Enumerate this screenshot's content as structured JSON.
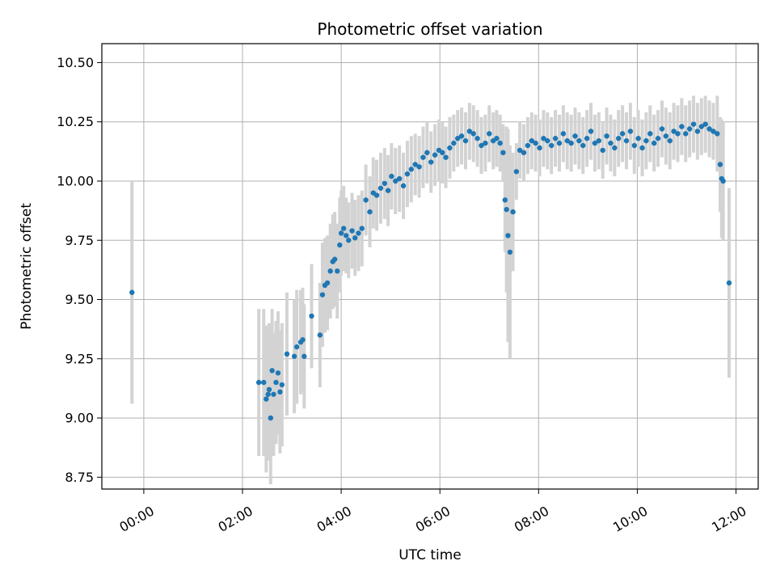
{
  "chart_data": {
    "type": "scatter",
    "title": "Photometric offset variation",
    "xlabel": "UTC time",
    "ylabel": "Photometric offset",
    "x_unit": "hours UTC",
    "xlim": [
      -0.85,
      12.45
    ],
    "ylim": [
      8.7,
      10.58
    ],
    "x_ticks": [
      {
        "value": 0,
        "label": "00:00"
      },
      {
        "value": 2,
        "label": "02:00"
      },
      {
        "value": 4,
        "label": "04:00"
      },
      {
        "value": 6,
        "label": "06:00"
      },
      {
        "value": 8,
        "label": "08:00"
      },
      {
        "value": 10,
        "label": "10:00"
      },
      {
        "value": 12,
        "label": "12:00"
      }
    ],
    "y_ticks": [
      {
        "value": 8.75,
        "label": "8.75"
      },
      {
        "value": 9.0,
        "label": "9.00"
      },
      {
        "value": 9.25,
        "label": "9.25"
      },
      {
        "value": 9.5,
        "label": "9.50"
      },
      {
        "value": 9.75,
        "label": "9.75"
      },
      {
        "value": 10.0,
        "label": "10.00"
      },
      {
        "value": 10.25,
        "label": "10.25"
      },
      {
        "value": 10.5,
        "label": "10.50"
      }
    ],
    "grid": true,
    "colors": {
      "points": "#1f77b4",
      "error_bars": "#d3d3d3",
      "grid": "#b0b0b0"
    },
    "series": [
      {
        "x": [
          -0.24,
          2.33,
          2.43,
          2.48,
          2.52,
          2.54,
          2.57,
          2.6,
          2.63,
          2.68,
          2.72,
          2.76,
          2.8,
          2.9,
          3.05,
          3.1,
          3.18,
          3.22,
          3.25,
          3.4,
          3.57,
          3.62,
          3.67,
          3.72,
          3.78,
          3.83,
          3.87,
          3.92,
          3.97,
          4.0,
          4.05,
          4.1,
          4.15,
          4.22,
          4.28,
          4.35,
          4.42,
          4.5,
          4.58,
          4.65,
          4.72,
          4.8,
          4.88,
          4.95,
          5.02,
          5.1,
          5.18,
          5.26,
          5.34,
          5.42,
          5.5,
          5.58,
          5.66,
          5.74,
          5.82,
          5.9,
          5.98,
          6.05,
          6.12,
          6.2,
          6.28,
          6.36,
          6.44,
          6.52,
          6.6,
          6.68,
          6.76,
          6.84,
          6.92,
          7.0,
          7.08,
          7.15,
          7.22,
          7.28,
          7.32,
          7.35,
          7.38,
          7.42,
          7.48,
          7.55,
          7.62,
          7.7,
          7.78,
          7.86,
          7.94,
          8.02,
          8.1,
          8.18,
          8.26,
          8.34,
          8.42,
          8.5,
          8.58,
          8.66,
          8.74,
          8.82,
          8.9,
          8.98,
          9.06,
          9.14,
          9.22,
          9.3,
          9.38,
          9.46,
          9.54,
          9.62,
          9.7,
          9.78,
          9.86,
          9.94,
          10.02,
          10.1,
          10.18,
          10.26,
          10.34,
          10.42,
          10.5,
          10.58,
          10.66,
          10.74,
          10.82,
          10.9,
          10.98,
          11.06,
          11.14,
          11.22,
          11.3,
          11.38,
          11.46,
          11.54,
          11.62,
          11.68,
          11.71,
          11.74,
          11.86
        ],
        "y": [
          9.53,
          9.15,
          9.15,
          9.08,
          9.1,
          9.12,
          9.0,
          9.2,
          9.1,
          9.15,
          9.19,
          9.11,
          9.14,
          9.27,
          9.26,
          9.3,
          9.32,
          9.33,
          9.26,
          9.43,
          9.35,
          9.52,
          9.56,
          9.57,
          9.62,
          9.66,
          9.67,
          9.62,
          9.73,
          9.78,
          9.8,
          9.77,
          9.75,
          9.79,
          9.76,
          9.78,
          9.8,
          9.92,
          9.87,
          9.95,
          9.94,
          9.97,
          9.99,
          9.96,
          10.02,
          10.0,
          10.01,
          9.98,
          10.03,
          10.05,
          10.07,
          10.06,
          10.1,
          10.12,
          10.08,
          10.11,
          10.13,
          10.12,
          10.1,
          10.14,
          10.16,
          10.18,
          10.19,
          10.17,
          10.21,
          10.2,
          10.18,
          10.15,
          10.16,
          10.2,
          10.17,
          10.18,
          10.16,
          10.12,
          9.92,
          9.88,
          9.77,
          9.7,
          9.87,
          10.04,
          10.13,
          10.12,
          10.15,
          10.17,
          10.16,
          10.14,
          10.18,
          10.17,
          10.15,
          10.18,
          10.16,
          10.2,
          10.17,
          10.16,
          10.19,
          10.17,
          10.15,
          10.18,
          10.21,
          10.16,
          10.17,
          10.13,
          10.19,
          10.16,
          10.14,
          10.18,
          10.2,
          10.17,
          10.21,
          10.15,
          10.18,
          10.14,
          10.17,
          10.2,
          10.16,
          10.18,
          10.22,
          10.19,
          10.17,
          10.21,
          10.2,
          10.23,
          10.2,
          10.22,
          10.24,
          10.21,
          10.23,
          10.24,
          10.22,
          10.21,
          10.2,
          10.07,
          10.01,
          10.0,
          9.57
        ],
        "yerr": [
          0.47,
          0.31,
          0.31,
          0.31,
          0.28,
          0.28,
          0.28,
          0.26,
          0.26,
          0.26,
          0.26,
          0.26,
          0.26,
          0.26,
          0.24,
          0.24,
          0.22,
          0.22,
          0.22,
          0.22,
          0.22,
          0.22,
          0.2,
          0.2,
          0.2,
          0.2,
          0.2,
          0.2,
          0.2,
          0.18,
          0.18,
          0.16,
          0.16,
          0.16,
          0.16,
          0.16,
          0.16,
          0.15,
          0.15,
          0.15,
          0.15,
          0.15,
          0.15,
          0.15,
          0.14,
          0.14,
          0.14,
          0.14,
          0.14,
          0.14,
          0.13,
          0.13,
          0.13,
          0.13,
          0.13,
          0.13,
          0.13,
          0.13,
          0.13,
          0.13,
          0.12,
          0.12,
          0.12,
          0.12,
          0.12,
          0.12,
          0.12,
          0.12,
          0.12,
          0.12,
          0.12,
          0.12,
          0.12,
          0.12,
          0.22,
          0.35,
          0.45,
          0.45,
          0.25,
          0.12,
          0.12,
          0.12,
          0.12,
          0.12,
          0.12,
          0.12,
          0.12,
          0.12,
          0.12,
          0.12,
          0.12,
          0.12,
          0.12,
          0.12,
          0.12,
          0.12,
          0.12,
          0.12,
          0.12,
          0.12,
          0.12,
          0.12,
          0.12,
          0.12,
          0.12,
          0.12,
          0.12,
          0.12,
          0.12,
          0.12,
          0.12,
          0.12,
          0.12,
          0.12,
          0.12,
          0.12,
          0.12,
          0.12,
          0.12,
          0.12,
          0.12,
          0.12,
          0.12,
          0.12,
          0.12,
          0.12,
          0.12,
          0.12,
          0.12,
          0.12,
          0.16,
          0.2,
          0.25,
          0.25,
          0.4
        ]
      }
    ]
  }
}
